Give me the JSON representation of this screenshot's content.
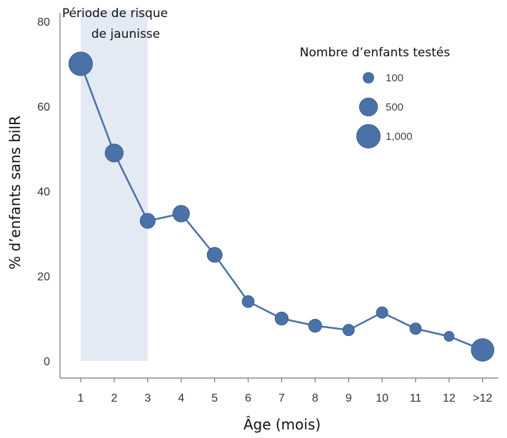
{
  "colors": {
    "series": "#4a72a8",
    "marker_stroke": "#3b5f8e",
    "band": "#e4eaf4",
    "axis": "#777777"
  },
  "chart_data": {
    "type": "scatter",
    "title": "",
    "xlabel": "Âge (mois)",
    "ylabel": "% d’enfants sans bilR",
    "ylim": [
      0,
      85
    ],
    "yticks": [
      0,
      20,
      40,
      60,
      80
    ],
    "grid": false,
    "categories": [
      "1",
      "2",
      "3",
      "4",
      "5",
      "6",
      "7",
      "8",
      "9",
      "10",
      "11",
      "12",
      ">12"
    ],
    "values": [
      70,
      49,
      33,
      34.7,
      25,
      14,
      10,
      8.3,
      7.3,
      11.4,
      7.6,
      5.8,
      2.6
    ],
    "sizes": [
      1000,
      500,
      300,
      400,
      300,
      150,
      200,
      200,
      130,
      130,
      130,
      80,
      900
    ],
    "shaded_region": {
      "x_from": "1",
      "x_to": "3",
      "label_line1": "Période de risque",
      "label_line2": "de jaunisse"
    },
    "size_legend": {
      "title": "Nombre d’enfants testés",
      "placement": "top-right",
      "entries": [
        {
          "label": "100",
          "size": 100
        },
        {
          "label": "500",
          "size": 500
        },
        {
          "label": "1,000",
          "size": 1000
        }
      ]
    }
  }
}
